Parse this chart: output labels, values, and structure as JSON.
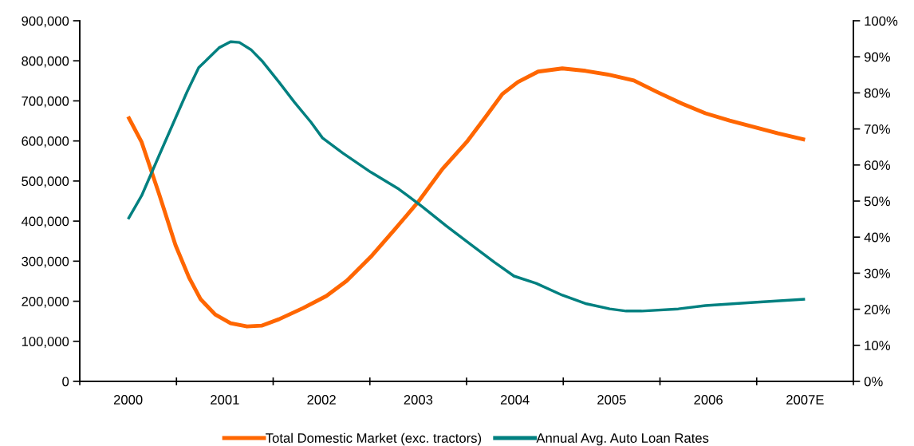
{
  "chart_data": {
    "type": "line",
    "xlim": [
      1999.5,
      2007.5
    ],
    "xticks": [
      {
        "value": 1999.5,
        "label": null
      },
      2000,
      {
        "value": 2000.5,
        "label": null
      },
      2001,
      {
        "value": 2001.5,
        "label": null
      },
      2002,
      {
        "value": 2002.5,
        "label": null
      },
      2003,
      {
        "value": 2003.5,
        "label": null
      },
      2004,
      {
        "value": 2004.5,
        "label": null
      },
      2005,
      {
        "value": 2005.5,
        "label": null
      },
      2006,
      {
        "value": 2006.5,
        "label": null
      },
      {
        "value": 2007,
        "label": "2007E"
      },
      {
        "value": 2007.5,
        "label": null
      }
    ],
    "ylim": [
      0,
      900000
    ],
    "yticks": [
      {
        "value": 0,
        "label": "0"
      },
      {
        "value": 100000,
        "label": "100,000"
      },
      {
        "value": 200000,
        "label": "200,000"
      },
      {
        "value": 300000,
        "label": "300,000"
      },
      {
        "value": 400000,
        "label": "400,000"
      },
      {
        "value": 500000,
        "label": "500,000"
      },
      {
        "value": 600000,
        "label": "600,000"
      },
      {
        "value": 700000,
        "label": "700,000"
      },
      {
        "value": 800000,
        "label": "800,000"
      },
      {
        "value": 900000,
        "label": "900,000"
      }
    ],
    "y2lim": [
      0,
      100
    ],
    "y2ticks": [
      {
        "value": 0,
        "label": "0%"
      },
      {
        "value": 10,
        "label": "10%"
      },
      {
        "value": 20,
        "label": "20%"
      },
      {
        "value": 30,
        "label": "30%"
      },
      {
        "value": 40,
        "label": "40%"
      },
      {
        "value": 50,
        "label": "50%"
      },
      {
        "value": 60,
        "label": "60%"
      },
      {
        "value": 70,
        "label": "70%"
      },
      {
        "value": 80,
        "label": "80%"
      },
      {
        "value": 90,
        "label": "90%"
      },
      {
        "value": 100,
        "label": "100%"
      }
    ],
    "grid": false,
    "legend": "bottom",
    "marker": "none",
    "line_style": "solid",
    "series": [
      {
        "name": "Total Domestic Market (exc. tractors)",
        "color": "#ff6600",
        "x": [
          2000,
          2000.14,
          2000.32,
          2000.49,
          2000.63,
          2000.75,
          2000.9,
          2001.06,
          2001.23,
          2001.38,
          2001.56,
          2001.81,
          2002.05,
          2002.26,
          2002.51,
          2002.76,
          2003.0,
          2003.25,
          2003.5,
          2003.7,
          2003.87,
          2004.03,
          2004.24,
          2004.49,
          2004.73,
          2004.98,
          2005.23,
          2005.48,
          2005.73,
          2005.97,
          2006.22,
          2006.47,
          2006.72,
          2007.0
        ],
        "values": [
          661000,
          597000,
          468000,
          340000,
          259000,
          205000,
          167000,
          145000,
          137000,
          139000,
          155000,
          183000,
          213000,
          251000,
          311000,
          380000,
          448000,
          530000,
          597000,
          661000,
          717000,
          747000,
          773000,
          781000,
          775000,
          765000,
          751000,
          721000,
          693000,
          669000,
          651000,
          635000,
          619000,
          603000
        ]
      },
      {
        "name": "Annual Avg. Auto Loan Rates",
        "color": "#008080",
        "axis": "y2",
        "x": [
          2000,
          2000.14,
          2000.32,
          2000.49,
          2000.61,
          2000.73,
          2000.83,
          2000.94,
          2001.06,
          2001.15,
          2001.27,
          2001.39,
          2001.56,
          2001.72,
          2001.89,
          2002.01,
          2002.22,
          2002.51,
          2002.8,
          2003.04,
          2003.29,
          2003.54,
          2003.79,
          2003.99,
          2004.22,
          2004.49,
          2004.74,
          2004.98,
          2005.15,
          2005.31,
          2005.69,
          2005.97,
          2006.47,
          2007.0
        ],
        "values": [
          45,
          51.5,
          62.6,
          73,
          80.3,
          87,
          89.6,
          92.5,
          94.2,
          94,
          92,
          88.7,
          83,
          77.4,
          71.9,
          67.5,
          63.3,
          58,
          53.3,
          48.5,
          43.1,
          38,
          33,
          29.2,
          27.2,
          23.9,
          21.5,
          20.1,
          19.5,
          19.5,
          20.1,
          21,
          21.9,
          22.8
        ]
      }
    ]
  }
}
